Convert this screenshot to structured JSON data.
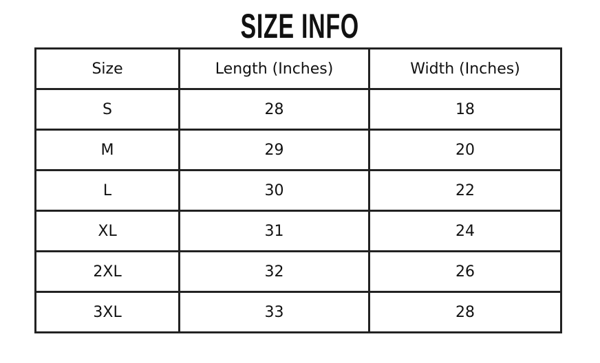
{
  "title": "SIZE INFO",
  "table": {
    "headers": [
      "Size",
      "Length (Inches)",
      "Width (Inches)"
    ],
    "rows": [
      [
        "S",
        "28",
        "18"
      ],
      [
        "M",
        "29",
        "20"
      ],
      [
        "L",
        "30",
        "22"
      ],
      [
        "XL",
        "31",
        "24"
      ],
      [
        "2XL",
        "32",
        "26"
      ],
      [
        "3XL",
        "33",
        "28"
      ]
    ]
  }
}
